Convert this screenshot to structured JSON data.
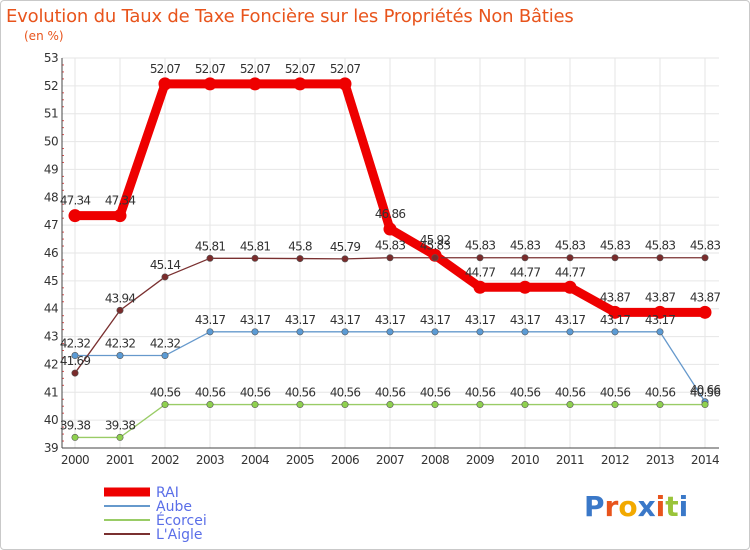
{
  "chart_data": {
    "type": "line",
    "title": "Evolution du Taux de Taxe Foncière sur les Propriétés Non Bâties",
    "subtitle": "(en %)",
    "xlabel": "",
    "ylabel": "",
    "x": [
      "2000",
      "2001",
      "2002",
      "2003",
      "2004",
      "2005",
      "2006",
      "2007",
      "2008",
      "2009",
      "2010",
      "2011",
      "2012",
      "2013",
      "2014"
    ],
    "ylim": [
      39,
      53
    ],
    "yticks": [
      "39",
      "40",
      "41",
      "42",
      "43",
      "44",
      "45",
      "46",
      "47",
      "48",
      "49",
      "50",
      "51",
      "52",
      "53"
    ],
    "series": [
      {
        "name": "RAI",
        "color": "#ee0000",
        "values": [
          47.34,
          47.34,
          52.07,
          52.07,
          52.07,
          52.07,
          52.07,
          46.86,
          45.92,
          44.77,
          44.77,
          44.77,
          43.87,
          43.87,
          43.87
        ],
        "labels": [
          "47.34",
          "47.34",
          "52.07",
          "52.07",
          "52.07",
          "52.07",
          "52.07",
          "46.86",
          "45.92",
          "44.77",
          "44.77",
          "44.77",
          "43.87",
          "43.87",
          "43.87"
        ]
      },
      {
        "name": "Aube",
        "color": "#6699cc",
        "values": [
          42.32,
          42.32,
          42.32,
          43.17,
          43.17,
          43.17,
          43.17,
          43.17,
          43.17,
          43.17,
          43.17,
          43.17,
          43.17,
          43.17,
          40.66
        ],
        "labels": [
          "42.32",
          "42.32",
          "42.32",
          "43.17",
          "43.17",
          "43.17",
          "43.17",
          "43.17",
          "43.17",
          "43.17",
          "43.17",
          "43.17",
          "43.17",
          "43.17",
          "40.66"
        ]
      },
      {
        "name": "Écorcei",
        "color": "#99cc66",
        "values": [
          39.38,
          39.38,
          40.56,
          40.56,
          40.56,
          40.56,
          40.56,
          40.56,
          40.56,
          40.56,
          40.56,
          40.56,
          40.56,
          40.56,
          40.56
        ],
        "labels": [
          "39.38",
          "39.38",
          "40.56",
          "40.56",
          "40.56",
          "40.56",
          "40.56",
          "40.56",
          "40.56",
          "40.56",
          "40.56",
          "40.56",
          "40.56",
          "40.56",
          "40.56"
        ]
      },
      {
        "name": "L'Aigle",
        "color": "#7a3030",
        "values": [
          41.69,
          43.94,
          45.14,
          45.81,
          45.81,
          45.8,
          45.79,
          45.83,
          45.83,
          45.83,
          45.83,
          45.83,
          45.83,
          45.83,
          45.83
        ],
        "labels": [
          "41.69",
          "43.94",
          "45.14",
          "45.81",
          "45.81",
          "45.8",
          "45.79",
          "45.83",
          "45.83",
          "45.83",
          "45.83",
          "45.83",
          "45.83",
          "45.83",
          "45.83"
        ]
      }
    ],
    "legend_position": "bottom-left"
  },
  "branding": {
    "logo_letters": [
      "P",
      "r",
      "o",
      "x",
      "i",
      "t",
      "i"
    ],
    "logo_colors": [
      "#3a78c8",
      "#e8541c",
      "#f2a900",
      "#3a78c8",
      "#e8541c",
      "#9ac43a",
      "#3a78c8"
    ]
  }
}
